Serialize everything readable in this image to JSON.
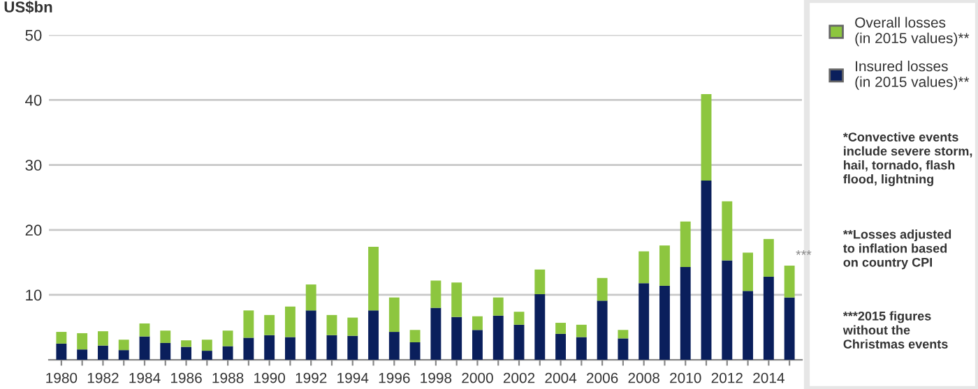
{
  "chart_data": {
    "type": "bar",
    "stacked": true,
    "ylabel": "US$bn",
    "categories": [
      "1980",
      null,
      "1982",
      null,
      "1984",
      null,
      "1986",
      null,
      "1988",
      null,
      "1990",
      null,
      "1992",
      null,
      "1994",
      null,
      "1996",
      null,
      "1998",
      null,
      "2000",
      null,
      "2002",
      null,
      "2004",
      null,
      "2006",
      null,
      "2008",
      null,
      "2010",
      null,
      "2012",
      null,
      "2014",
      null
    ],
    "series": [
      {
        "name": "Insured losses\n(in 2015 values)**",
        "color": "#0a1f5c",
        "values": [
          2.5,
          1.6,
          2.2,
          1.5,
          3.6,
          2.6,
          2.0,
          1.4,
          2.1,
          3.4,
          3.8,
          3.5,
          7.6,
          3.8,
          3.7,
          7.6,
          4.3,
          2.7,
          8.0,
          6.6,
          4.6,
          6.8,
          5.4,
          10.1,
          4.0,
          3.5,
          9.1,
          3.3,
          11.8,
          11.4,
          14.3,
          27.6,
          15.3,
          10.6,
          12.8,
          9.6
        ]
      },
      {
        "name": "Overall losses\n(in 2015 values)**",
        "color": "#8dc63f",
        "values": [
          1.8,
          2.5,
          2.2,
          1.6,
          2.0,
          1.9,
          1.0,
          1.7,
          2.4,
          4.2,
          3.1,
          4.7,
          4.0,
          3.1,
          2.8,
          9.8,
          5.3,
          1.9,
          4.2,
          5.3,
          2.1,
          2.8,
          2.0,
          3.8,
          1.7,
          1.9,
          3.5,
          1.3,
          4.9,
          6.2,
          7.0,
          13.3,
          9.1,
          5.9,
          5.8,
          4.9
        ]
      }
    ],
    "ylim": [
      0,
      50
    ],
    "yticks": [
      10,
      20,
      30,
      40,
      50
    ],
    "grid": "y",
    "legend": "right",
    "annotations": [
      "***",
      "*Convective events\ninclude severe storm,\nhail, tornado, flash\nflood, lightning",
      "**Losses adjusted\nto inflation based\non country CPI",
      "***2015 figures\nwithout the\nChristmas events"
    ]
  }
}
